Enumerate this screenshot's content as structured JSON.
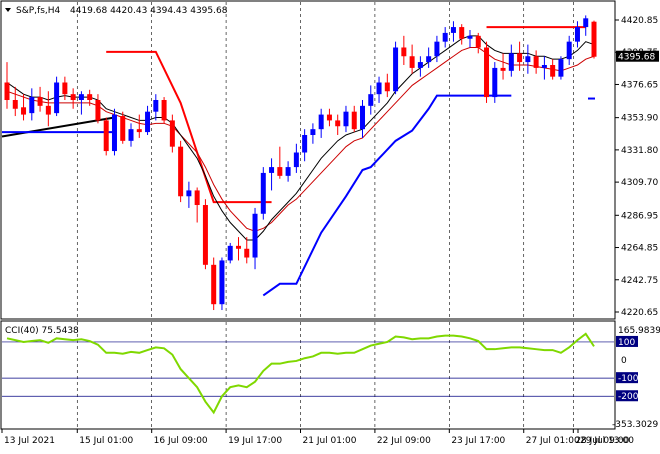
{
  "header": {
    "arrow_icon": "triangle-down-icon",
    "symbol": "S&P,fs,H4",
    "ohlc": "4419.68 4420.43 4394.43 4395.68"
  },
  "price_axis": {
    "labels": [
      "4420.85",
      "4398.75",
      "4376.65",
      "4353.90",
      "4331.80",
      "4309.70",
      "4286.95",
      "4264.85",
      "4242.75",
      "4220.65"
    ],
    "current_price": "4395.68"
  },
  "cci_panel": {
    "title": "CCI(40) 75.5438",
    "top_value": "165.9839",
    "bottom_value": "-353.3029",
    "levels": [
      "100",
      "0",
      "-100",
      "-200"
    ]
  },
  "time_axis": {
    "labels": [
      "13 Jul 2021",
      "15 Jul 01:00",
      "16 Jul 09:00",
      "19 Jul 17:00",
      "21 Jul 01:00",
      "22 Jul 09:00",
      "23 Jul 17:00",
      "27 Jul 01:00",
      "28 Jul 09:00",
      "29 Jul 13:00"
    ]
  },
  "colors": {
    "bull": "#0000ff",
    "bear": "#ff0000",
    "ma_fast": "#000000",
    "ma_slow": "#cc0000",
    "cci_line": "#7fd800",
    "level_line": "#000080",
    "psar_bear": "#ff0000",
    "psar_bull": "#0000ff"
  },
  "chart_data": {
    "type": "candlestick",
    "y_range": [
      4220.65,
      4425
    ],
    "candles": [
      {
        "o": 4378,
        "h": 4392,
        "l": 4360,
        "c": 4366
      },
      {
        "o": 4366,
        "h": 4375,
        "l": 4355,
        "c": 4360
      },
      {
        "o": 4361,
        "h": 4370,
        "l": 4352,
        "c": 4356
      },
      {
        "o": 4357,
        "h": 4374,
        "l": 4352,
        "c": 4368
      },
      {
        "o": 4368,
        "h": 4375,
        "l": 4358,
        "c": 4362
      },
      {
        "o": 4362,
        "h": 4372,
        "l": 4348,
        "c": 4356
      },
      {
        "o": 4357,
        "h": 4382,
        "l": 4355,
        "c": 4378
      },
      {
        "o": 4378,
        "h": 4382,
        "l": 4366,
        "c": 4370
      },
      {
        "o": 4370,
        "h": 4374,
        "l": 4360,
        "c": 4366
      },
      {
        "o": 4366,
        "h": 4372,
        "l": 4356,
        "c": 4370
      },
      {
        "o": 4370,
        "h": 4373,
        "l": 4362,
        "c": 4366
      },
      {
        "o": 4366,
        "h": 4370,
        "l": 4350,
        "c": 4352
      },
      {
        "o": 4352,
        "h": 4354,
        "l": 4328,
        "c": 4331
      },
      {
        "o": 4331,
        "h": 4360,
        "l": 4328,
        "c": 4356
      },
      {
        "o": 4355,
        "h": 4358,
        "l": 4336,
        "c": 4338
      },
      {
        "o": 4338,
        "h": 4350,
        "l": 4334,
        "c": 4346
      },
      {
        "o": 4346,
        "h": 4356,
        "l": 4340,
        "c": 4344
      },
      {
        "o": 4344,
        "h": 4362,
        "l": 4342,
        "c": 4358
      },
      {
        "o": 4358,
        "h": 4370,
        "l": 4352,
        "c": 4366
      },
      {
        "o": 4366,
        "h": 4368,
        "l": 4350,
        "c": 4352
      },
      {
        "o": 4352,
        "h": 4356,
        "l": 4330,
        "c": 4334
      },
      {
        "o": 4334,
        "h": 4338,
        "l": 4296,
        "c": 4300
      },
      {
        "o": 4300,
        "h": 4310,
        "l": 4292,
        "c": 4304
      },
      {
        "o": 4304,
        "h": 4306,
        "l": 4282,
        "c": 4294
      },
      {
        "o": 4294,
        "h": 4298,
        "l": 4250,
        "c": 4253
      },
      {
        "o": 4253,
        "h": 4258,
        "l": 4222,
        "c": 4226
      },
      {
        "o": 4226,
        "h": 4258,
        "l": 4222,
        "c": 4256
      },
      {
        "o": 4256,
        "h": 4268,
        "l": 4254,
        "c": 4266
      },
      {
        "o": 4266,
        "h": 4272,
        "l": 4256,
        "c": 4264
      },
      {
        "o": 4264,
        "h": 4272,
        "l": 4254,
        "c": 4258
      },
      {
        "o": 4258,
        "h": 4292,
        "l": 4250,
        "c": 4288
      },
      {
        "o": 4288,
        "h": 4320,
        "l": 4284,
        "c": 4316
      },
      {
        "o": 4316,
        "h": 4326,
        "l": 4304,
        "c": 4320
      },
      {
        "o": 4320,
        "h": 4334,
        "l": 4312,
        "c": 4314
      },
      {
        "o": 4314,
        "h": 4324,
        "l": 4310,
        "c": 4320
      },
      {
        "o": 4320,
        "h": 4336,
        "l": 4316,
        "c": 4330
      },
      {
        "o": 4330,
        "h": 4346,
        "l": 4324,
        "c": 4342
      },
      {
        "o": 4342,
        "h": 4350,
        "l": 4336,
        "c": 4346
      },
      {
        "o": 4346,
        "h": 4360,
        "l": 4340,
        "c": 4356
      },
      {
        "o": 4356,
        "h": 4360,
        "l": 4348,
        "c": 4352
      },
      {
        "o": 4352,
        "h": 4356,
        "l": 4342,
        "c": 4348
      },
      {
        "o": 4348,
        "h": 4362,
        "l": 4344,
        "c": 4358
      },
      {
        "o": 4358,
        "h": 4362,
        "l": 4344,
        "c": 4346
      },
      {
        "o": 4346,
        "h": 4366,
        "l": 4340,
        "c": 4362
      },
      {
        "o": 4362,
        "h": 4376,
        "l": 4356,
        "c": 4370
      },
      {
        "o": 4370,
        "h": 4382,
        "l": 4364,
        "c": 4378
      },
      {
        "o": 4378,
        "h": 4384,
        "l": 4368,
        "c": 4372
      },
      {
        "o": 4372,
        "h": 4406,
        "l": 4370,
        "c": 4402
      },
      {
        "o": 4402,
        "h": 4410,
        "l": 4390,
        "c": 4396
      },
      {
        "o": 4396,
        "h": 4404,
        "l": 4384,
        "c": 4388
      },
      {
        "o": 4388,
        "h": 4396,
        "l": 4382,
        "c": 4392
      },
      {
        "o": 4392,
        "h": 4402,
        "l": 4388,
        "c": 4396
      },
      {
        "o": 4396,
        "h": 4410,
        "l": 4392,
        "c": 4406
      },
      {
        "o": 4406,
        "h": 4416,
        "l": 4402,
        "c": 4412
      },
      {
        "o": 4412,
        "h": 4420,
        "l": 4406,
        "c": 4416
      },
      {
        "o": 4416,
        "h": 4418,
        "l": 4404,
        "c": 4408
      },
      {
        "o": 4408,
        "h": 4414,
        "l": 4402,
        "c": 4410
      },
      {
        "o": 4410,
        "h": 4412,
        "l": 4398,
        "c": 4402
      },
      {
        "o": 4402,
        "h": 4406,
        "l": 4364,
        "c": 4368
      },
      {
        "o": 4368,
        "h": 4392,
        "l": 4364,
        "c": 4388
      },
      {
        "o": 4388,
        "h": 4398,
        "l": 4380,
        "c": 4386
      },
      {
        "o": 4386,
        "h": 4404,
        "l": 4382,
        "c": 4398
      },
      {
        "o": 4398,
        "h": 4406,
        "l": 4386,
        "c": 4392
      },
      {
        "o": 4392,
        "h": 4404,
        "l": 4384,
        "c": 4396
      },
      {
        "o": 4396,
        "h": 4400,
        "l": 4384,
        "c": 4388
      },
      {
        "o": 4388,
        "h": 4396,
        "l": 4380,
        "c": 4390
      },
      {
        "o": 4390,
        "h": 4394,
        "l": 4380,
        "c": 4382
      },
      {
        "o": 4382,
        "h": 4396,
        "l": 4380,
        "c": 4394
      },
      {
        "o": 4394,
        "h": 4410,
        "l": 4390,
        "c": 4406
      },
      {
        "o": 4406,
        "h": 4420,
        "l": 4402,
        "c": 4416
      },
      {
        "o": 4416,
        "h": 4424,
        "l": 4410,
        "c": 4422
      },
      {
        "o": 4419.68,
        "h": 4420.43,
        "l": 4394.43,
        "c": 4395.68
      }
    ],
    "ma_fast": [
      4378,
      4374,
      4370,
      4368,
      4368,
      4366,
      4368,
      4369,
      4368,
      4368,
      4368,
      4366,
      4360,
      4358,
      4356,
      4354,
      4352,
      4352,
      4354,
      4354,
      4350,
      4342,
      4334,
      4326,
      4314,
      4300,
      4290,
      4282,
      4276,
      4270,
      4270,
      4276,
      4284,
      4290,
      4296,
      4302,
      4310,
      4318,
      4326,
      4332,
      4338,
      4342,
      4344,
      4346,
      4352,
      4358,
      4364,
      4372,
      4378,
      4384,
      4388,
      4392,
      4396,
      4400,
      4404,
      4408,
      4410,
      4410,
      4404,
      4400,
      4398,
      4398,
      4398,
      4398,
      4396,
      4396,
      4394,
      4394,
      4396,
      4400,
      4406,
      4404
    ],
    "ma_slow": [
      4372,
      4370,
      4368,
      4366,
      4365,
      4364,
      4364,
      4364,
      4364,
      4364,
      4364,
      4362,
      4358,
      4356,
      4354,
      4352,
      4350,
      4349,
      4350,
      4350,
      4348,
      4342,
      4336,
      4330,
      4320,
      4308,
      4298,
      4290,
      4284,
      4278,
      4276,
      4278,
      4282,
      4288,
      4294,
      4298,
      4304,
      4310,
      4316,
      4322,
      4328,
      4334,
      4338,
      4340,
      4346,
      4352,
      4358,
      4364,
      4370,
      4376,
      4380,
      4384,
      4388,
      4392,
      4396,
      4400,
      4402,
      4402,
      4398,
      4394,
      4392,
      4390,
      4390,
      4390,
      4389,
      4388,
      4387,
      4386,
      4388,
      4390,
      4394,
      4396
    ],
    "cci": [
      120,
      110,
      100,
      105,
      110,
      95,
      120,
      115,
      110,
      115,
      105,
      85,
      40,
      40,
      35,
      45,
      40,
      55,
      70,
      65,
      30,
      -50,
      -100,
      -150,
      -230,
      -290,
      -200,
      -150,
      -140,
      -150,
      -120,
      -60,
      -20,
      -20,
      -10,
      -5,
      10,
      20,
      40,
      40,
      35,
      40,
      40,
      60,
      80,
      90,
      100,
      130,
      125,
      115,
      120,
      120,
      130,
      135,
      135,
      130,
      120,
      105,
      60,
      60,
      65,
      70,
      70,
      65,
      60,
      55,
      55,
      40,
      70,
      110,
      145,
      75.5438
    ]
  },
  "overlays": {
    "trend_line": {
      "price_start": 4341,
      "price_end": 4354
    },
    "blue_level": {
      "price": 4344
    },
    "red_stop_1": {
      "price": 4399
    },
    "red_stop_2": {
      "price": 4296
    },
    "red_stop_3": {
      "price": 4416
    },
    "blue_stop_1": {
      "price": 4369
    }
  }
}
